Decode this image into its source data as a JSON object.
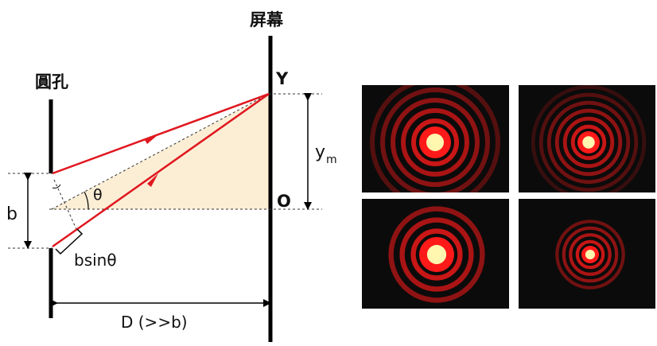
{
  "labels": {
    "screen": "屏幕",
    "aperture": "圓孔",
    "point_y": "Y",
    "point_o": "O",
    "ym_main": "y",
    "ym_sub": "m",
    "theta": "θ",
    "b": "b",
    "bsin": "bsinθ",
    "distance": "D (>>b)"
  },
  "colors": {
    "ray": "#e0171f",
    "wall": "#000000",
    "triangle_fill": "#fbeed5",
    "dashed": "#333333",
    "glow_core": "#fff6b0",
    "glow_red": "#ff1a1a"
  },
  "photos": [
    {
      "name": "airy-pattern-top-left",
      "rings": 5,
      "core_scale": 1.0
    },
    {
      "name": "airy-pattern-top-right",
      "rings": 6,
      "core_scale": 0.7
    },
    {
      "name": "airy-pattern-bottom-left",
      "rings": 3,
      "core_scale": 1.1
    },
    {
      "name": "airy-pattern-bottom-right",
      "rings": 4,
      "core_scale": 0.55
    }
  ]
}
